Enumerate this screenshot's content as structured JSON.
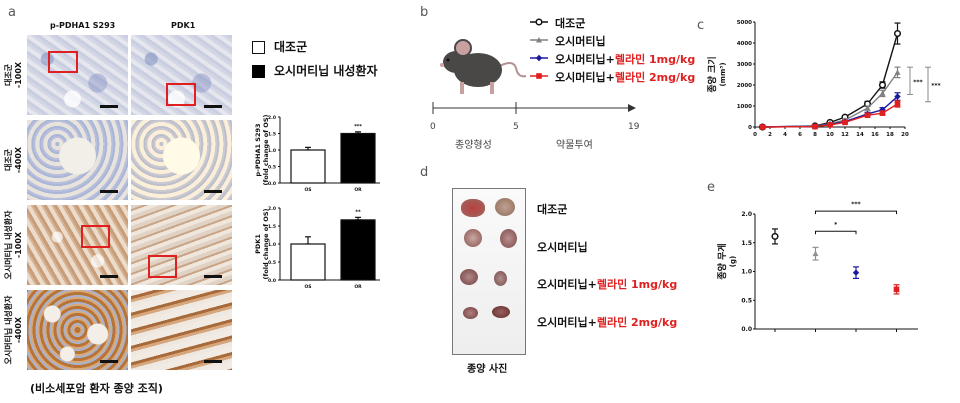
{
  "panel_a": {
    "label": "a",
    "col_headers": [
      "p-PDHA1 S293",
      "PDK1"
    ],
    "row_labels": [
      [
        "대조군",
        "-100X"
      ],
      [
        "대조군",
        "-400X"
      ],
      [
        "오시머티닙 내성환자",
        "-100X"
      ],
      [
        "오시머티닙 내성환자",
        "-400X"
      ]
    ],
    "legend": [
      {
        "label": "대조군",
        "color": "#ffffff"
      },
      {
        "label": "오시머티닙 내성환자",
        "color": "#000000"
      }
    ],
    "caption": "(비소세포암 환자 종양 조직)"
  },
  "panel_b": {
    "label": "b",
    "timeline_ticks": [
      "0",
      "5",
      "19"
    ],
    "phases": [
      "종양형성",
      "약물투여"
    ],
    "legend": [
      {
        "prefix": "대조군",
        "suffix": "",
        "color": "#111111",
        "marker": "open-circle"
      },
      {
        "prefix": "오시머티닙",
        "suffix": "",
        "color": "#808080",
        "marker": "triangle"
      },
      {
        "prefix": "오시머티닙+",
        "suffix": "렐라민 1mg/kg",
        "color": "#1a1aa0",
        "marker": "diamond"
      },
      {
        "prefix": "오시머티닙+",
        "suffix": "렐라민 2mg/kg",
        "color": "#e02020",
        "marker": "square"
      }
    ]
  },
  "panel_c": {
    "label": "c"
  },
  "panel_d": {
    "label": "d",
    "rows": [
      {
        "prefix": "대조군",
        "suffix": ""
      },
      {
        "prefix": "오시머티닙",
        "suffix": ""
      },
      {
        "prefix": "오시머티닙+",
        "suffix": "렐라민 1mg/kg"
      },
      {
        "prefix": "오시머티닙+",
        "suffix": "렐라민 2mg/kg"
      }
    ],
    "caption": "종양 사진"
  },
  "panel_e": {
    "label": "e"
  },
  "chart_data": [
    {
      "id": "a-top",
      "type": "bar",
      "categories": [
        "OS",
        "OR"
      ],
      "values": [
        1.0,
        1.5
      ],
      "errors": [
        0.08,
        0.05
      ],
      "colors": [
        "#ffffff",
        "#000000"
      ],
      "ylabel": "p-PDHA1 S293\n(fold change of OS)",
      "ylim": [
        0,
        2.0
      ],
      "yticks": [
        "0.0",
        "0.5",
        "1.0",
        "1.5",
        "2.0"
      ],
      "annotations": [
        {
          "category": "OR",
          "text": "***"
        }
      ]
    },
    {
      "id": "a-bottom",
      "type": "bar",
      "categories": [
        "OS",
        "OR"
      ],
      "values": [
        1.0,
        1.67
      ],
      "errors": [
        0.2,
        0.07
      ],
      "colors": [
        "#ffffff",
        "#000000"
      ],
      "ylabel": "PDK1\n(fold change of OS)",
      "ylim": [
        0,
        2.0
      ],
      "yticks": [
        "0.0",
        "0.5",
        "1.0",
        "1.5",
        "2.0"
      ],
      "annotations": [
        {
          "category": "OR",
          "text": "**"
        }
      ]
    },
    {
      "id": "c",
      "type": "line",
      "ylabel": "종양 크기",
      "ylabel_unit": "(mm³)",
      "xlim": [
        0,
        20
      ],
      "ylim": [
        0,
        5000
      ],
      "xticks": [
        "0",
        "2",
        "4",
        "6",
        "8",
        "10",
        "12",
        "14",
        "16",
        "18",
        "20"
      ],
      "yticks": [
        "0",
        "1000",
        "2000",
        "3000",
        "4000",
        "5000"
      ],
      "x": [
        1,
        8,
        10,
        12,
        15,
        17,
        19
      ],
      "series": [
        {
          "name": "대조군",
          "color": "#111111",
          "marker": "open-circle",
          "values": [
            0,
            50,
            220,
            470,
            1100,
            2000,
            4450
          ],
          "errors": [
            0,
            20,
            40,
            60,
            120,
            150,
            500
          ]
        },
        {
          "name": "오시머티닙",
          "color": "#808080",
          "marker": "triangle",
          "values": [
            0,
            40,
            160,
            330,
            900,
            1600,
            2600
          ],
          "errors": [
            0,
            20,
            30,
            50,
            100,
            150,
            250
          ]
        },
        {
          "name": "오시머티닙+렐라민 1mg/kg",
          "color": "#1a1aa0",
          "marker": "diamond",
          "values": [
            0,
            30,
            120,
            260,
            620,
            820,
            1450
          ],
          "errors": [
            0,
            10,
            30,
            40,
            80,
            100,
            180
          ]
        },
        {
          "name": "오시머티닙+렐라민 2mg/kg",
          "color": "#e02020",
          "marker": "square",
          "values": [
            0,
            20,
            100,
            220,
            560,
            660,
            1100
          ],
          "errors": [
            0,
            10,
            20,
            40,
            60,
            80,
            150
          ]
        }
      ],
      "annotations": [
        {
          "text": "***",
          "from": 1550,
          "to": 2850
        },
        {
          "text": "***",
          "from": 1200,
          "to": 2850
        }
      ]
    },
    {
      "id": "e",
      "type": "scatter",
      "ylabel": "종양 무게",
      "ylabel_unit": "(g)",
      "ylim": [
        0,
        2.0
      ],
      "yticks": [
        "0.0",
        "0.5",
        "1.0",
        "1.5",
        "2.0"
      ],
      "categories": [
        "대조군",
        "오시머티닙",
        "오시머티닙+렐라민 1mg/kg",
        "오시머티닙+렐라민 2mg/kg"
      ],
      "values": [
        1.61,
        1.31,
        0.98,
        0.69
      ],
      "errors": [
        0.13,
        0.11,
        0.1,
        0.08
      ],
      "colors": [
        "#111111",
        "#909090",
        "#1a1aa0",
        "#e02020"
      ],
      "markers": [
        "open-circle",
        "triangle",
        "diamond",
        "square"
      ],
      "annotations": [
        {
          "text": "*",
          "from": 1,
          "to": 2,
          "y": 1.7
        },
        {
          "text": "***",
          "from": 1,
          "to": 3,
          "y": 2.05
        }
      ]
    }
  ]
}
